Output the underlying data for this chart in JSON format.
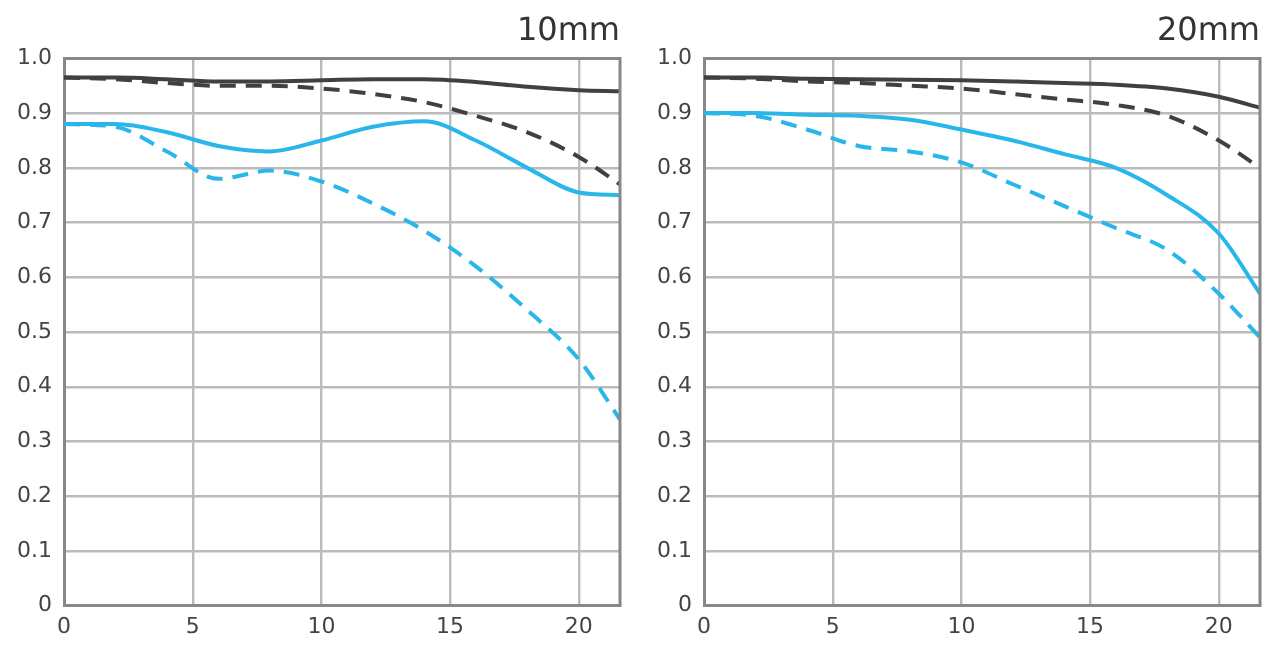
{
  "chart_data": [
    {
      "type": "line",
      "title": "10mm",
      "x": [
        0,
        2,
        4,
        6,
        8,
        10,
        12,
        14,
        16,
        18,
        20,
        21.6
      ],
      "xlim": [
        0,
        21.6
      ],
      "xticks": [
        0,
        5,
        10,
        15,
        20
      ],
      "ylim": [
        0,
        1
      ],
      "yticks": [
        0,
        0.1,
        0.2,
        0.3,
        0.4,
        0.5,
        0.6,
        0.7,
        0.8,
        0.9,
        {
          "value": 1,
          "label": "1.0"
        }
      ],
      "grid": true,
      "legend": false,
      "marker": "none",
      "series": [
        {
          "color": "#404040",
          "line_style": "solid",
          "values": [
            0.965,
            0.965,
            0.962,
            0.958,
            0.958,
            0.96,
            0.962,
            0.962,
            0.957,
            0.948,
            0.942,
            0.94
          ]
        },
        {
          "color": "#404040",
          "line_style": "dashed",
          "values": [
            0.965,
            0.962,
            0.955,
            0.95,
            0.95,
            0.945,
            0.935,
            0.92,
            0.895,
            0.865,
            0.82,
            0.77
          ]
        },
        {
          "color": "#29b6ea",
          "line_style": "solid",
          "values": [
            0.88,
            0.88,
            0.865,
            0.84,
            0.83,
            0.85,
            0.875,
            0.885,
            0.85,
            0.8,
            0.755,
            0.75
          ]
        },
        {
          "color": "#29b6ea",
          "line_style": "dashed",
          "values": [
            0.88,
            0.875,
            0.83,
            0.78,
            0.795,
            0.775,
            0.735,
            0.685,
            0.62,
            0.54,
            0.45,
            0.34
          ]
        }
      ]
    },
    {
      "type": "line",
      "title": "20mm",
      "x": [
        0,
        2,
        4,
        6,
        8,
        10,
        12,
        14,
        16,
        18,
        20,
        21.6
      ],
      "xlim": [
        0,
        21.6
      ],
      "xticks": [
        0,
        5,
        10,
        15,
        20
      ],
      "ylim": [
        0,
        1
      ],
      "yticks": [
        0,
        0.1,
        0.2,
        0.3,
        0.4,
        0.5,
        0.6,
        0.7,
        0.8,
        0.9,
        {
          "value": 1,
          "label": "1.0"
        }
      ],
      "grid": true,
      "legend": false,
      "marker": "none",
      "series": [
        {
          "color": "#404040",
          "line_style": "solid",
          "values": [
            0.965,
            0.965,
            0.963,
            0.962,
            0.961,
            0.96,
            0.958,
            0.955,
            0.952,
            0.945,
            0.93,
            0.91
          ]
        },
        {
          "color": "#404040",
          "line_style": "dashed",
          "values": [
            0.965,
            0.963,
            0.958,
            0.955,
            0.95,
            0.945,
            0.935,
            0.925,
            0.915,
            0.895,
            0.85,
            0.8
          ]
        },
        {
          "color": "#29b6ea",
          "line_style": "solid",
          "values": [
            0.9,
            0.9,
            0.897,
            0.895,
            0.888,
            0.87,
            0.85,
            0.825,
            0.8,
            0.75,
            0.68,
            0.57
          ]
        },
        {
          "color": "#29b6ea",
          "line_style": "dashed",
          "values": [
            0.9,
            0.895,
            0.87,
            0.84,
            0.83,
            0.81,
            0.77,
            0.73,
            0.69,
            0.65,
            0.57,
            0.49
          ]
        }
      ]
    }
  ]
}
